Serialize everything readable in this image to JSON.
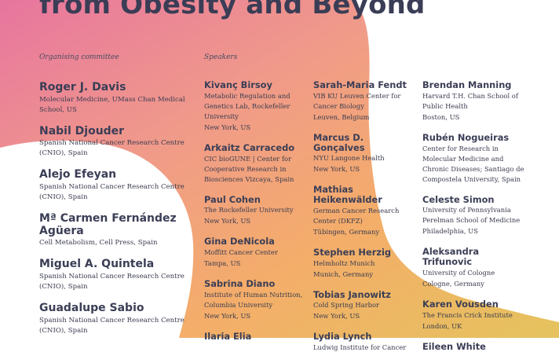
{
  "header": {
    "title": "from Obesity and Beyond"
  },
  "colors": {
    "pink": "#e8799e",
    "peach": "#f2a08a",
    "orange": "#f4ac66",
    "yellow": "#e8c25c",
    "text": "#2e3046"
  },
  "organising_committee": {
    "label": "Organising committee",
    "members": [
      {
        "name": "Roger J. Davis",
        "affiliation": "Molecular Medicine, UMass Chan Medical School, US"
      },
      {
        "name": "Nabil Djouder",
        "affiliation": "Spanish National Cancer Research Centre (CNIO), Spain"
      },
      {
        "name": "Alejo Efeyan",
        "affiliation": "Spanish National Cancer Research Centre (CNIO), Spain"
      },
      {
        "name": "Mª Carmen Fernández Agüera",
        "affiliation": "Cell Metabolism, Cell Press, Spain"
      },
      {
        "name": "Miguel A. Quintela",
        "affiliation": "Spanish National Cancer Research Centre (CNIO), Spain"
      },
      {
        "name": "Guadalupe Sabio",
        "affiliation": "Spanish National Cancer Research Centre (CNIO), Spain"
      }
    ]
  },
  "speakers": {
    "label": "Speakers",
    "columns": [
      [
        {
          "name": "Kivanç Birsoy",
          "affiliation": "Metabolic Regulation and Genetics Lab, Rockefeller University",
          "location": "New York, US"
        },
        {
          "name": "Arkaitz Carracedo",
          "affiliation": "CIC bioGUNE | Center for Cooperative Research in Biosciences Vizcaya, Spain",
          "location": ""
        },
        {
          "name": "Paul Cohen",
          "affiliation": "The Rockefeller University",
          "location": "New York, US"
        },
        {
          "name": "Gina DeNicola",
          "affiliation": "Moffitt Cancer Center",
          "location": "Tampa, US"
        },
        {
          "name": "Sabrina Diano",
          "affiliation": "Institute of Human Nutrition, Columbia University",
          "location": "New York, US"
        },
        {
          "name": "Ilaria Elia",
          "affiliation": "",
          "location": ""
        }
      ],
      [
        {
          "name": "Sarah-Maria Fendt",
          "affiliation": "VIB KU Leuven Center for Cancer Biology",
          "location": "Leuven, Belgium"
        },
        {
          "name": "Marcus D. Gonçalves",
          "affiliation": "NYU Langone Health",
          "location": "New York, US"
        },
        {
          "name": "Mathias Heikenwälder",
          "affiliation": "German Cancer Research Center (DKFZ)",
          "location": "Tübingen, Germany"
        },
        {
          "name": "Stephen Herzig",
          "affiliation": "Helmholtz Munich",
          "location": "Munich, Germany"
        },
        {
          "name": "Tobias Janowitz",
          "affiliation": "Cold Spring Harbor",
          "location": "New York, US"
        },
        {
          "name": "Lydia Lynch",
          "affiliation": "Ludwig Institute for Cancer",
          "location": ""
        }
      ],
      [
        {
          "name": "Brendan Manning",
          "affiliation": "Harvard T.H. Chan School of Public Health",
          "location": "Boston, US"
        },
        {
          "name": "Rubén Nogueiras",
          "affiliation": "Center for Research in Molecular Medicine and Chronic Diseases; Santiago de Compostela University, Spain",
          "location": ""
        },
        {
          "name": "Celeste Simon",
          "affiliation": "University of Pennsylvania Perelman School of Medicine",
          "location": "Philadelphia, US"
        },
        {
          "name": "Aleksandra Trifunovic",
          "affiliation": "University of Cologne",
          "location": "Cologne, Germany"
        },
        {
          "name": "Karen Vousden",
          "affiliation": "The Francis Crick Institute",
          "location": "London, UK"
        },
        {
          "name": "Eileen White",
          "affiliation": "",
          "location": ""
        }
      ]
    ]
  }
}
